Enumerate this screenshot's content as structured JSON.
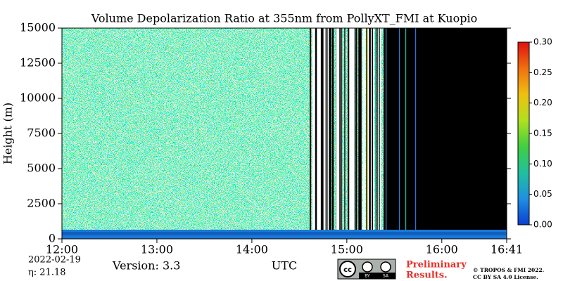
{
  "chart_data": {
    "type": "heatmap",
    "title": "Volume Depolarization Ratio at 355nm from PollyXT_FMI at Kuopio",
    "ylabel": "Height (m)",
    "xlabel": "UTC",
    "xlim": [
      12,
      16.6833
    ],
    "xticks": [
      {
        "value": 12,
        "label": "12:00"
      },
      {
        "value": 13,
        "label": "13:00"
      },
      {
        "value": 14,
        "label": "14:00"
      },
      {
        "value": 15,
        "label": "15:00"
      },
      {
        "value": 16,
        "label": "16:00"
      },
      {
        "value": 16.6833,
        "label": "16:41"
      }
    ],
    "ylim": [
      0,
      15000
    ],
    "yticks": [
      0,
      2500,
      5000,
      7500,
      10000,
      12500,
      15000
    ],
    "colorbar": {
      "clim": [
        0,
        0.3
      ],
      "ticks": [
        {
          "value": 0,
          "label": "0.00"
        },
        {
          "value": 0.05,
          "label": "0.05"
        },
        {
          "value": 0.1,
          "label": "0.10"
        },
        {
          "value": 0.15,
          "label": "0.15"
        },
        {
          "value": 0.2,
          "label": "0.20"
        },
        {
          "value": 0.25,
          "label": "0.25"
        },
        {
          "value": 0.3,
          "label": "0.30"
        }
      ],
      "colors": [
        "#0a3fd0",
        "#1e90e0",
        "#20c0a0",
        "#40d040",
        "#b0e020",
        "#f0c010",
        "#f07010",
        "#e01010"
      ]
    }
  },
  "info": {
    "date": "2022-02-19",
    "eta": "η:  21.18",
    "version": "Version: 3.3",
    "badge": [
      "cc",
      "BY",
      "SA"
    ],
    "notice": [
      "Preliminary",
      "Results."
    ],
    "copyright": [
      "© TROPOS & FMI 2022.",
      "CC BY SA 4.0 License."
    ]
  }
}
